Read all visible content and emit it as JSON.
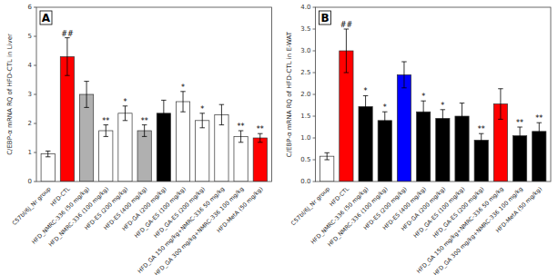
{
  "chart_data": [
    {
      "type": "bar",
      "title": "A",
      "ylabel": "C/EBP-α mRNA RQ of HFD-CTL in Liver",
      "categories": [
        "C57bl/6J_Nr group",
        "HFD-CTL",
        "HFD_NMRC-336 (50 mg/kg)",
        "HFD_NMRC-336 (100 mg/kg)",
        "HFD-ES (200 mg/kg)",
        "HFD-ES (400 mg/kg)",
        "HFD-GA (200 mg/kg)",
        "HFD_GA-ES (100 mg/kg)",
        "HFD_GA-ES (200 mg/kg)",
        "HFD_GA 150 mg/kg+NMRC-336 50 mg/kg",
        "HFD_GA 300 mg/kg+NMRC-336 100 mg/kg",
        "HFD-MetA (50 mg/kg)"
      ],
      "values": [
        0.95,
        4.3,
        3.0,
        1.75,
        2.35,
        1.75,
        2.35,
        2.75,
        2.1,
        2.3,
        1.55,
        1.5
      ],
      "errors": [
        0.1,
        0.65,
        0.45,
        0.2,
        0.25,
        0.2,
        0.45,
        0.35,
        0.25,
        0.35,
        0.2,
        0.15
      ],
      "colors": [
        "white",
        "red",
        "#b0b0b0",
        "white",
        "white",
        "#b0b0b0",
        "black",
        "white",
        "white",
        "white",
        "white",
        "red"
      ],
      "annotations": [
        null,
        "##",
        null,
        "**",
        "*",
        "**",
        null,
        "*",
        "*",
        null,
        "**",
        "**"
      ],
      "ylim": [
        0,
        6
      ],
      "yticks": [
        0,
        1,
        2,
        3,
        4,
        5,
        6
      ]
    },
    {
      "type": "bar",
      "title": "B",
      "ylabel": "C/EBP-α mRNA RQ of HFD-CTL in E-WAT",
      "categories": [
        "C57bl/6J_Nr group",
        "HFD-CTL",
        "HFD_NMRC-336 (50 mg/kg)",
        "HFD_NMRC-336 (100 mg/kg)",
        "HFD-ES (200 mg/kg)",
        "HFD-ES (400 mg/kg)",
        "HFD-GA (200 mg/kg)",
        "HFD_GA-ES (100 mg/kg)",
        "HFD_GA-ES (200 mg/kg)",
        "HFD_GA 150 mg/kg+NMRC-336 50 mg/kg",
        "HFD_GA 300 mg/kg+NMRC-336 100 mg/kg",
        "HFD-MetA (50 mg/kg)"
      ],
      "values": [
        0.58,
        3.0,
        1.72,
        1.4,
        2.45,
        1.6,
        1.45,
        1.5,
        0.95,
        1.78,
        1.05,
        1.15
      ],
      "errors": [
        0.08,
        0.5,
        0.25,
        0.2,
        0.3,
        0.25,
        0.2,
        0.3,
        0.15,
        0.35,
        0.2,
        0.2
      ],
      "colors": [
        "white",
        "red",
        "black",
        "black",
        "blue",
        "black",
        "black",
        "black",
        "black",
        "red",
        "black",
        "black"
      ],
      "annotations": [
        null,
        "##",
        "*",
        "*",
        null,
        "*",
        "*",
        null,
        "**",
        null,
        "**",
        "**"
      ],
      "ylim": [
        0,
        4.0
      ],
      "yticks": [
        {
          "value": 0.0,
          "label": "0.0"
        },
        0.5,
        {
          "value": 1.0,
          "label": "1.0"
        },
        1.5,
        {
          "value": 2.0,
          "label": "2.0"
        },
        2.5,
        {
          "value": 3.0,
          "label": "3.0"
        },
        3.5,
        {
          "value": 4.0,
          "label": "4.0"
        }
      ]
    }
  ]
}
